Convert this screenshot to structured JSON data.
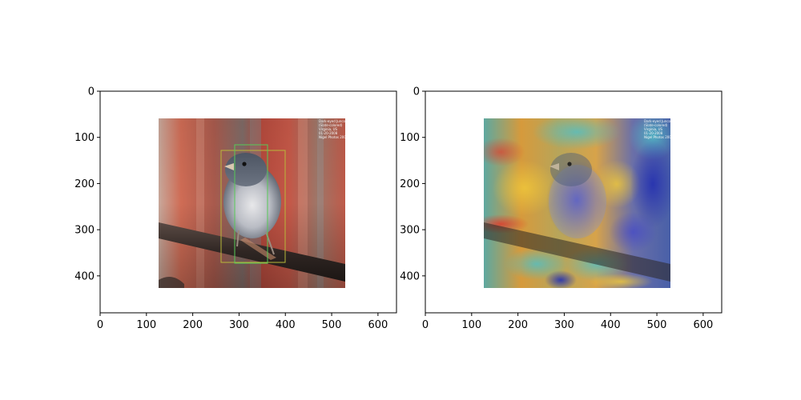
{
  "chart_data": [
    {
      "type": "image",
      "panel": "left",
      "content": "bird-photo-with-bounding-boxes",
      "xlim": [
        0,
        640
      ],
      "ylim": [
        480,
        0
      ],
      "x_ticks": [
        0,
        100,
        200,
        300,
        400,
        500,
        600
      ],
      "y_ticks": [
        0,
        100,
        200,
        300,
        400
      ],
      "x_tick_labels": [
        "0",
        "100",
        "200",
        "300",
        "400",
        "500",
        "600"
      ],
      "y_tick_labels": [
        "0",
        "100",
        "200",
        "300",
        "400"
      ],
      "image_extent": {
        "x0": 127,
        "x1": 530,
        "y0": 58,
        "y1": 425
      },
      "boxes": [
        {
          "color": "#b8b83a",
          "x0": 262,
          "y0": 128,
          "x1": 400,
          "y1": 370
        },
        {
          "color": "#57c957",
          "x0": 292,
          "y0": 116,
          "x1": 362,
          "y1": 372
        }
      ]
    },
    {
      "type": "heatmap",
      "panel": "right",
      "content": "bird-photo-with-heatmap-overlay",
      "xlim": [
        0,
        640
      ],
      "ylim": [
        480,
        0
      ],
      "x_ticks": [
        0,
        100,
        200,
        300,
        400,
        500,
        600
      ],
      "y_ticks": [
        0,
        100,
        200,
        300,
        400
      ],
      "x_tick_labels": [
        "0",
        "100",
        "200",
        "300",
        "400",
        "500",
        "600"
      ],
      "y_tick_labels": [
        "0",
        "100",
        "200",
        "300",
        "400"
      ],
      "image_extent": {
        "x0": 127,
        "x1": 530,
        "y0": 58,
        "y1": 425
      },
      "colormap": "jet"
    }
  ],
  "colors": {
    "frame": "#000000",
    "box_yellow": "#b8b83a",
    "box_green": "#57c957"
  },
  "watermark_lines": [
    "Dark-eyed Junco",
    "(Slate-colored)",
    "Virginia, US",
    "01-20-2008",
    "Nigel Photos 2008"
  ]
}
